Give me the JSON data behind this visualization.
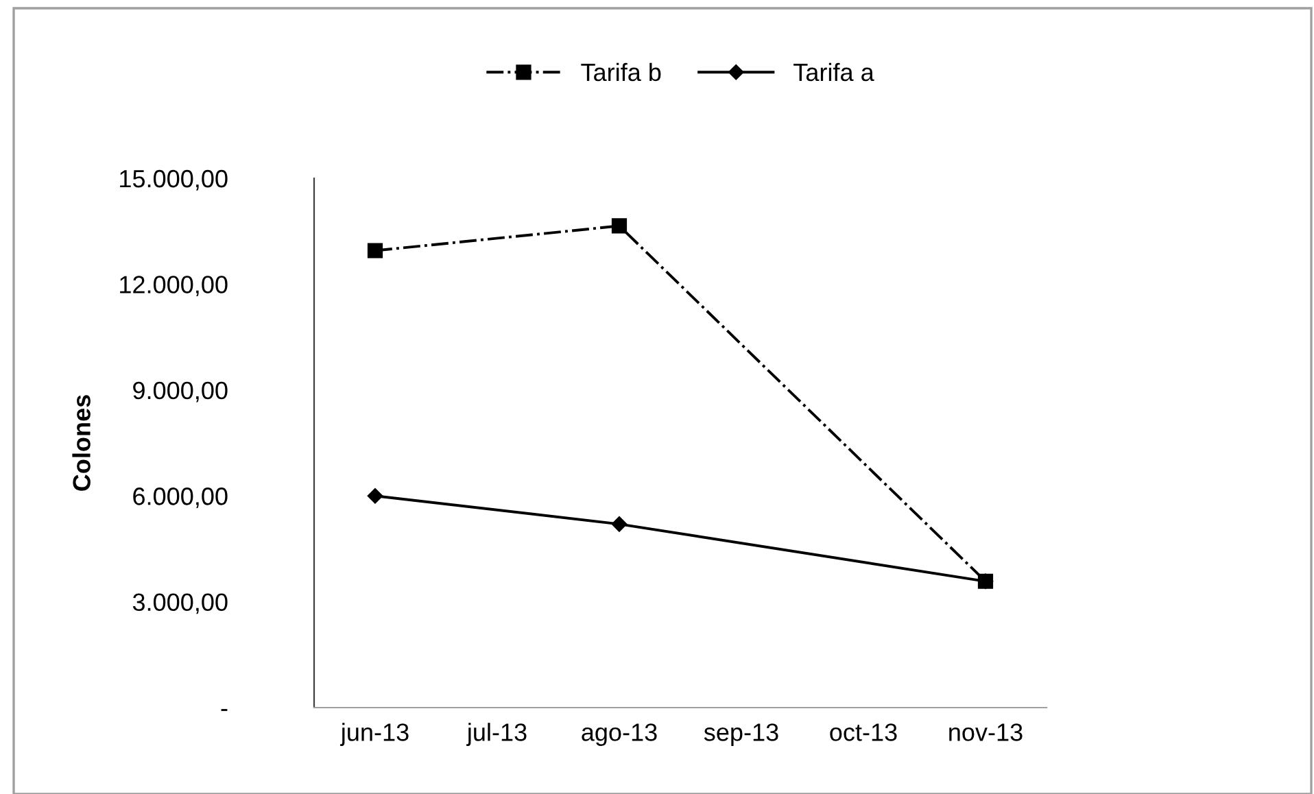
{
  "chart_data": {
    "type": "line",
    "ylabel": "Colones",
    "categories": [
      "jun-13",
      "jul-13",
      "ago-13",
      "sep-13",
      "oct-13",
      "nov-13"
    ],
    "series": [
      {
        "name": "Tarifa b",
        "color": "#000000",
        "values": [
          12950,
          null,
          13650,
          null,
          null,
          3580
        ],
        "marker": "square",
        "line_style": "dashdot"
      },
      {
        "name": "Tarifa a",
        "color": "#000000",
        "values": [
          6000,
          null,
          5200,
          null,
          null,
          3580
        ],
        "marker": "diamond",
        "line_style": "solid"
      }
    ],
    "ylim": [
      0,
      15000
    ],
    "yticks": [
      {
        "value": 0,
        "label": "-"
      },
      {
        "value": 3000,
        "label": "3.000,00"
      },
      {
        "value": 6000,
        "label": "6.000,00"
      },
      {
        "value": 9000,
        "label": "9.000,00"
      },
      {
        "value": 12000,
        "label": "12.000,00"
      },
      {
        "value": 15000,
        "label": "15.000,00"
      }
    ],
    "grid": false,
    "legend": "top"
  }
}
